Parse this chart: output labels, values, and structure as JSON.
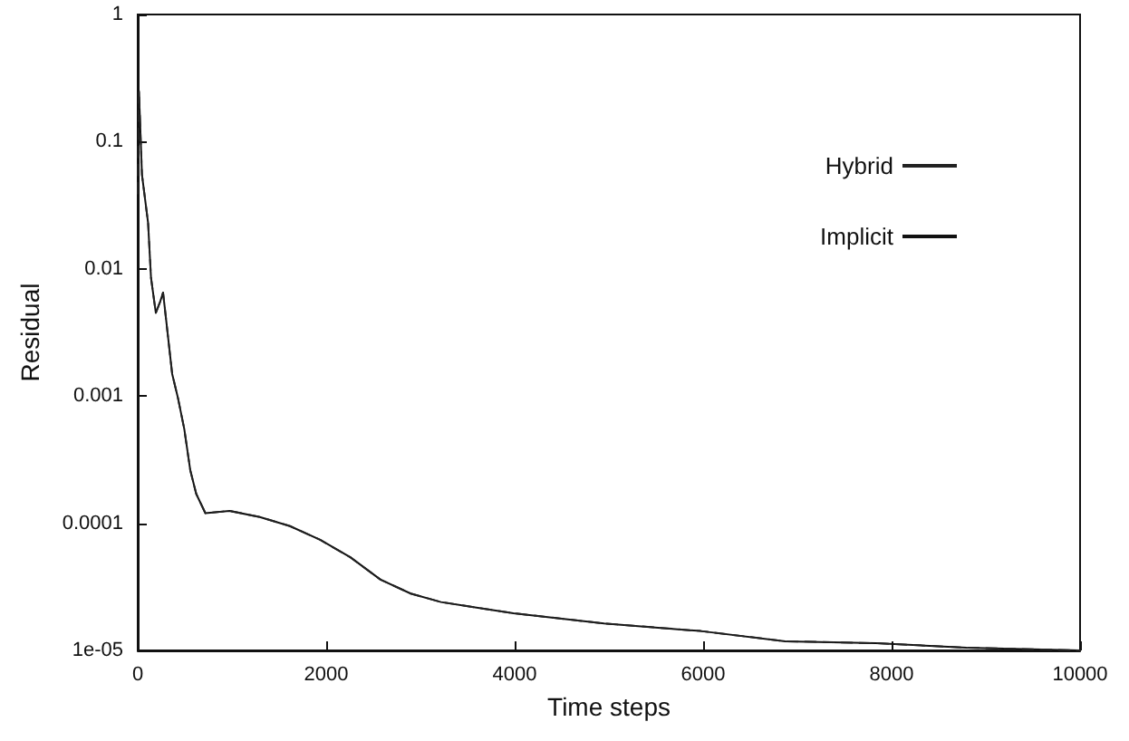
{
  "chart_data": {
    "type": "line",
    "xlabel": "Time steps",
    "ylabel": "Residual",
    "log": "y",
    "grid": false,
    "legend": "top right",
    "marker": "none",
    "xlim": [
      0,
      10000
    ],
    "xticks": [
      0,
      2000,
      4000,
      6000,
      8000,
      10000
    ],
    "ylim": [
      1e-05,
      1
    ],
    "yticks": [
      {
        "value": 1e-05,
        "label": "1e-05"
      },
      0.0001,
      0.001,
      0.01,
      0.1,
      1
    ],
    "series": [
      {
        "name": "Hybrid",
        "color": "#222222",
        "line_style": "dashed",
        "x": [
          0,
          13,
          45,
          110,
          141,
          192,
          237,
          269,
          301,
          365,
          429,
          494,
          558,
          621,
          718,
          974,
          1295,
          1615,
          1936,
          2256,
          2577,
          2897,
          3218,
          3987,
          4949,
          5974,
          6872,
          7833,
          8795,
          10000
        ],
        "values": [
          0.039,
          0.25,
          0.055,
          0.023,
          0.0085,
          0.0045,
          0.0055,
          0.0065,
          0.004,
          0.0015,
          0.00095,
          0.00055,
          0.00026,
          0.00017,
          0.00012,
          0.000125,
          0.000112,
          9.5e-05,
          7.4e-05,
          5.4e-05,
          3.6e-05,
          2.8e-05,
          2.4e-05,
          1.96e-05,
          1.63e-05,
          1.42e-05,
          1.18e-05,
          1.14e-05,
          1.05e-05,
          1e-05
        ]
      },
      {
        "name": "Implicit",
        "color": "#111111",
        "line_style": "solid",
        "x": [
          0,
          13,
          45,
          110,
          141,
          192,
          237,
          269,
          301,
          365,
          429,
          494,
          558,
          621,
          718,
          974,
          1295,
          1615,
          1936,
          2256,
          2577,
          2897,
          3218,
          3987,
          4949,
          5974,
          6872,
          7833,
          8795,
          10000
        ],
        "values": [
          0.039,
          0.25,
          0.055,
          0.023,
          0.0085,
          0.0045,
          0.0055,
          0.0065,
          0.004,
          0.0015,
          0.00095,
          0.00055,
          0.00026,
          0.00017,
          0.00012,
          0.000125,
          0.000112,
          9.5e-05,
          7.4e-05,
          5.4e-05,
          3.6e-05,
          2.8e-05,
          2.4e-05,
          1.96e-05,
          1.63e-05,
          1.42e-05,
          1.18e-05,
          1.14e-05,
          1.05e-05,
          1e-05
        ]
      }
    ]
  }
}
